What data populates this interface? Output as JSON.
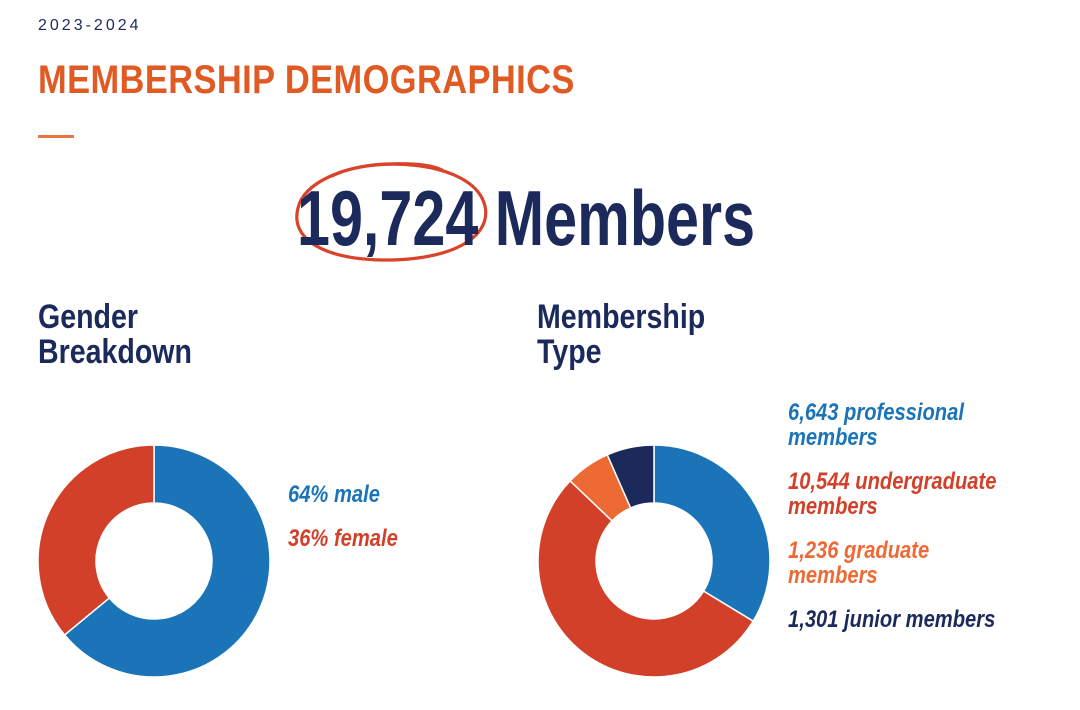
{
  "header": {
    "year": "2023-2024",
    "title": "MEMBERSHIP DEMOGRAPHICS"
  },
  "headline": {
    "text": "19,724 Members",
    "highlight_color": "#d9432a"
  },
  "sections": {
    "gender": {
      "line1": "Gender",
      "line2": "Breakdown"
    },
    "type": {
      "line1": "Membership",
      "line2": "Type"
    }
  },
  "colors": {
    "navy": "#1b2a5b",
    "blue": "#1b73b8",
    "red": "#d3402a",
    "orange": "#ee6a35",
    "title_orange": "#e05a24"
  },
  "chart_data": [
    {
      "type": "pie",
      "title": "Gender Breakdown",
      "donut": true,
      "categories": [
        "male",
        "female"
      ],
      "values": [
        64,
        36
      ],
      "units": "%",
      "colors": [
        "#1b73b8",
        "#d3402a"
      ],
      "labels": [
        {
          "line1": "64% male",
          "line2": ""
        },
        {
          "line1": "36% female",
          "line2": ""
        }
      ],
      "legend": "right"
    },
    {
      "type": "pie",
      "title": "Membership Type",
      "donut": true,
      "categories": [
        "professional",
        "undergraduate",
        "graduate",
        "junior"
      ],
      "values": [
        6643,
        10544,
        1236,
        1301
      ],
      "colors": [
        "#1b73b8",
        "#d3402a",
        "#ee6a35",
        "#1b2a5b"
      ],
      "labels": [
        {
          "line1": "6,643 professional",
          "line2": "members"
        },
        {
          "line1": "10,544 undergraduate",
          "line2": "members"
        },
        {
          "line1": "1,236 graduate",
          "line2": "members"
        },
        {
          "line1": "1,301 junior members",
          "line2": ""
        }
      ],
      "legend": "right"
    }
  ]
}
